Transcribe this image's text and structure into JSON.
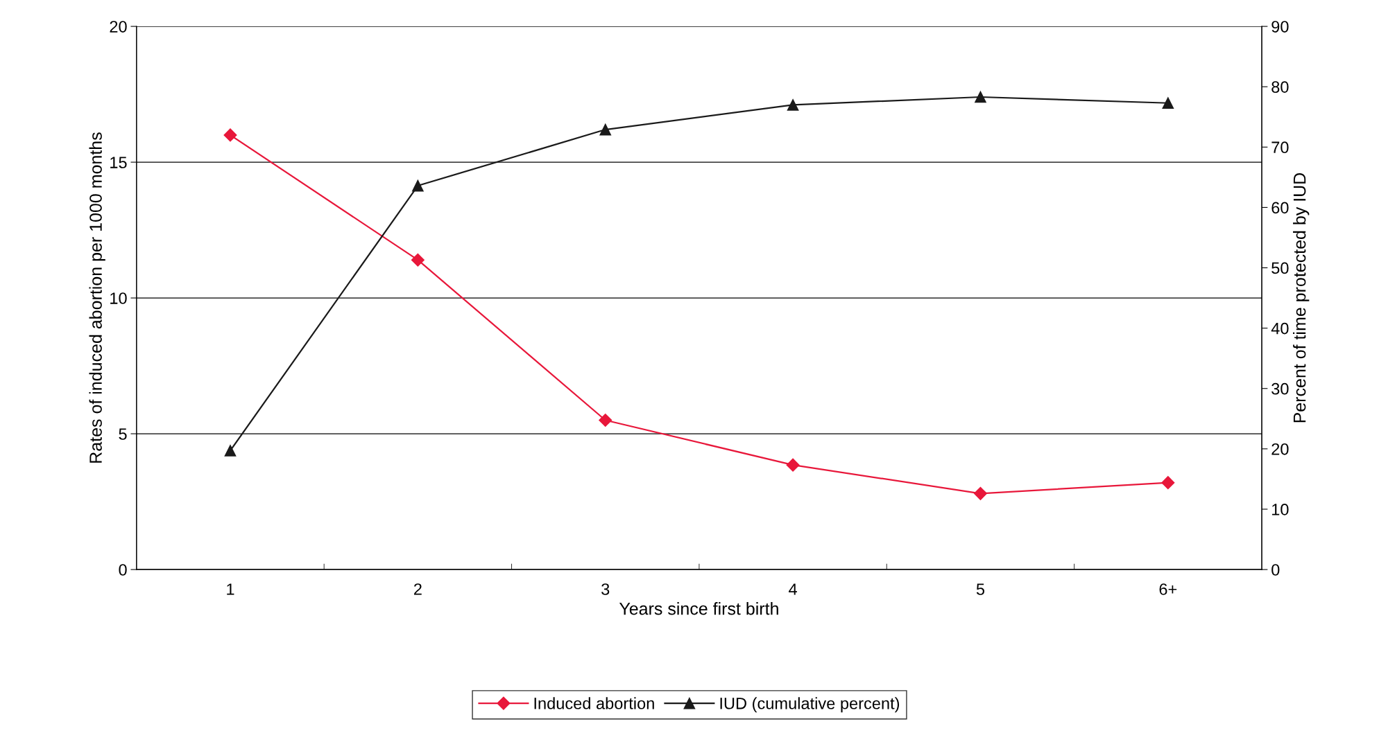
{
  "chart_data": {
    "type": "line",
    "xlabel": "Years since first birth",
    "ylabel": "Rates of induced abortion per 1000 months",
    "y2label": "Percent of time protected by IUD",
    "categories": [
      "1",
      "2",
      "3",
      "4",
      "5",
      "6+"
    ],
    "series": [
      {
        "name": "Induced abortion",
        "color": "#e8173a",
        "marker": "diamond",
        "values": [
          16.0,
          11.4,
          5.5,
          3.85,
          2.8,
          3.2
        ]
      },
      {
        "name": "IUD (cumulative percent)",
        "color": "#1a1a1a",
        "marker": "triangle",
        "axis": "y2",
        "values": [
          19.7,
          63.6,
          72.9,
          77.0,
          78.3,
          77.3
        ]
      }
    ],
    "ylim": [
      0,
      20
    ],
    "yticks": [
      0,
      5,
      10,
      15,
      20
    ],
    "y2lim": [
      0,
      90
    ],
    "y2ticks": [
      0,
      10,
      20,
      30,
      40,
      50,
      60,
      70,
      80,
      90
    ],
    "grid": "y",
    "legend": "bottom",
    "line_style": "solid"
  }
}
